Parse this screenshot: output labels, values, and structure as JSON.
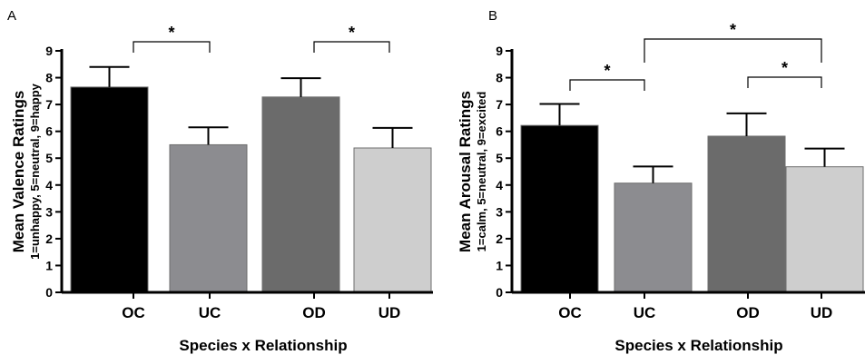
{
  "chart_data": [
    {
      "type": "bar",
      "panel_label": "A",
      "categories": [
        "OC",
        "UC",
        "OD",
        "UD"
      ],
      "values": [
        7.65,
        5.5,
        7.28,
        5.38
      ],
      "errors": [
        0.75,
        0.65,
        0.7,
        0.75
      ],
      "colors": [
        "#000000",
        "#8c8c90",
        "#6b6b6b",
        "#cecece"
      ],
      "ylabel_main": "Mean Valence Ratings",
      "ylabel_sub": "1=unhappy, 5=neutral, 9=happy",
      "xlabel": "Species x Relationship",
      "ylim": [
        0,
        9
      ],
      "yticks": [
        "0",
        "1",
        "2",
        "3",
        "4",
        "5",
        "6",
        "7",
        "8",
        "9"
      ],
      "significance": [
        {
          "from": 0,
          "to": 1,
          "label": "*",
          "level": 1
        },
        {
          "from": 2,
          "to": 3,
          "label": "*",
          "level": 1
        }
      ]
    },
    {
      "type": "bar",
      "panel_label": "B",
      "categories": [
        "OC",
        "UC",
        "OD",
        "UD"
      ],
      "values": [
        6.22,
        4.07,
        5.82,
        4.68
      ],
      "errors": [
        0.8,
        0.62,
        0.85,
        0.68
      ],
      "colors": [
        "#000000",
        "#8c8c90",
        "#6b6b6b",
        "#cecece"
      ],
      "ylabel_main": "Mean Arousal Ratings",
      "ylabel_sub": "1=calm, 5=neutral, 9=excited",
      "xlabel": "Species x Relationship",
      "ylim": [
        0,
        9
      ],
      "yticks": [
        "0",
        "1",
        "2",
        "3",
        "4",
        "5",
        "6",
        "7",
        "8",
        "9"
      ],
      "significance": [
        {
          "from": 0,
          "to": 1,
          "label": "*",
          "level": 1
        },
        {
          "from": 2,
          "to": 3,
          "label": "*",
          "level": 1
        },
        {
          "from": 1,
          "to": 3,
          "label": "*",
          "level": 2
        }
      ]
    }
  ]
}
